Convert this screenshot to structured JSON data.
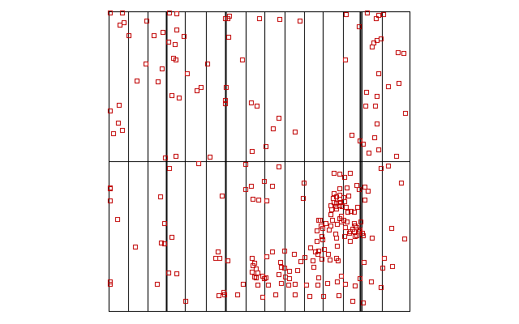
{
  "chart_data": {
    "type": "scatter",
    "title": "",
    "xlabel": "",
    "ylabel": "",
    "xlim": [
      0,
      1
    ],
    "ylim": [
      0,
      1
    ],
    "y_direction": "down",
    "grid": {
      "vertical_dividers": [
        0.065,
        0.129,
        0.191,
        0.254,
        0.323,
        0.388,
        0.453,
        0.517,
        0.582,
        0.647,
        0.711,
        0.776,
        0.84,
        0.906
      ],
      "heavy_dividers": [
        0.191,
        0.388,
        0.832
      ],
      "horizontal_dividers": [
        0.5
      ]
    },
    "marker": {
      "shape": "open-square",
      "color": "#c00000"
    },
    "points": [
      [
        0.003,
        0.003
      ],
      [
        0.045,
        0.004
      ],
      [
        0.2,
        0.004
      ],
      [
        0.225,
        0.008
      ],
      [
        0.385,
        0.022
      ],
      [
        0.049,
        0.037
      ],
      [
        0.125,
        0.03
      ],
      [
        0.4,
        0.016
      ],
      [
        0.395,
        0.022
      ],
      [
        0.498,
        0.022
      ],
      [
        0.567,
        0.025
      ],
      [
        0.632,
        0.03
      ],
      [
        0.787,
        0.009
      ],
      [
        0.856,
        0.005
      ],
      [
        0.893,
        0.013
      ],
      [
        0.909,
        0.009
      ],
      [
        0.886,
        0.023
      ],
      [
        0.83,
        0.05
      ],
      [
        0.035,
        0.045
      ],
      [
        0.067,
        0.08
      ],
      [
        0.148,
        0.08
      ],
      [
        0.178,
        0.069
      ],
      [
        0.225,
        0.06
      ],
      [
        0.198,
        0.102
      ],
      [
        0.218,
        0.11
      ],
      [
        0.248,
        0.083
      ],
      [
        0.396,
        0.085
      ],
      [
        0.902,
        0.09
      ],
      [
        0.889,
        0.095
      ],
      [
        0.879,
        0.105
      ],
      [
        0.871,
        0.117
      ],
      [
        0.213,
        0.155
      ],
      [
        0.222,
        0.16
      ],
      [
        0.121,
        0.175
      ],
      [
        0.327,
        0.175
      ],
      [
        0.176,
        0.191
      ],
      [
        0.26,
        0.205
      ],
      [
        0.441,
        0.16
      ],
      [
        0.784,
        0.16
      ],
      [
        0.893,
        0.205
      ],
      [
        0.959,
        0.135
      ],
      [
        0.978,
        0.138
      ],
      [
        0.092,
        0.23
      ],
      [
        0.162,
        0.232
      ],
      [
        0.304,
        0.253
      ],
      [
        0.388,
        0.252
      ],
      [
        0.208,
        0.278
      ],
      [
        0.291,
        0.264
      ],
      [
        0.387,
        0.295
      ],
      [
        0.473,
        0.304
      ],
      [
        0.925,
        0.25
      ],
      [
        0.889,
        0.281
      ],
      [
        0.853,
        0.268
      ],
      [
        0.962,
        0.238
      ],
      [
        0.033,
        0.311
      ],
      [
        0.232,
        0.288
      ],
      [
        0.386,
        0.307
      ],
      [
        0.49,
        0.315
      ],
      [
        0.564,
        0.355
      ],
      [
        0.852,
        0.315
      ],
      [
        0.883,
        0.314
      ],
      [
        0.982,
        0.337
      ],
      [
        0.003,
        0.33
      ],
      [
        0.03,
        0.37
      ],
      [
        0.045,
        0.394
      ],
      [
        0.015,
        0.405
      ],
      [
        0.545,
        0.39
      ],
      [
        0.617,
        0.4
      ],
      [
        0.888,
        0.373
      ],
      [
        0.804,
        0.41
      ],
      [
        0.88,
        0.42
      ],
      [
        0.832,
        0.43
      ],
      [
        0.895,
        0.46
      ],
      [
        0.954,
        0.48
      ],
      [
        0.862,
        0.47
      ],
      [
        0.844,
        0.44
      ],
      [
        0.519,
        0.45
      ],
      [
        0.475,
        0.465
      ],
      [
        0.335,
        0.484
      ],
      [
        0.222,
        0.48
      ],
      [
        0.298,
        0.505
      ],
      [
        0.188,
        0.486
      ],
      [
        0.2,
        0.522
      ],
      [
        0.454,
        0.509
      ],
      [
        0.563,
        0.515
      ],
      [
        0.903,
        0.521
      ],
      [
        0.927,
        0.513
      ],
      [
        0.764,
        0.54
      ],
      [
        0.746,
        0.538
      ],
      [
        0.8,
        0.537
      ],
      [
        0.782,
        0.55
      ],
      [
        0.003,
        0.585
      ],
      [
        0.002,
        0.588
      ],
      [
        0.515,
        0.565
      ],
      [
        0.473,
        0.581
      ],
      [
        0.452,
        0.591
      ],
      [
        0.542,
        0.582
      ],
      [
        0.646,
        0.57
      ],
      [
        0.79,
        0.585
      ],
      [
        0.821,
        0.578
      ],
      [
        0.829,
        0.592
      ],
      [
        0.849,
        0.583
      ],
      [
        0.97,
        0.571
      ],
      [
        0.001,
        0.63
      ],
      [
        0.172,
        0.615
      ],
      [
        0.374,
        0.613
      ],
      [
        0.477,
        0.625
      ],
      [
        0.495,
        0.627
      ],
      [
        0.522,
        0.63
      ],
      [
        0.644,
        0.62
      ],
      [
        0.747,
        0.604
      ],
      [
        0.764,
        0.59
      ],
      [
        0.764,
        0.636
      ],
      [
        0.766,
        0.611
      ],
      [
        0.795,
        0.612
      ],
      [
        0.779,
        0.618
      ],
      [
        0.773,
        0.649
      ],
      [
        0.859,
        0.597
      ],
      [
        0.849,
        0.627
      ],
      [
        0.755,
        0.615
      ],
      [
        0.766,
        0.625
      ],
      [
        0.754,
        0.638
      ],
      [
        0.745,
        0.634
      ],
      [
        0.751,
        0.648
      ],
      [
        0.738,
        0.66
      ],
      [
        0.734,
        0.675
      ],
      [
        0.765,
        0.646
      ],
      [
        0.781,
        0.632
      ],
      [
        0.744,
        0.621
      ],
      [
        0.755,
        0.657
      ],
      [
        0.736,
        0.645
      ],
      [
        0.785,
        0.652
      ],
      [
        0.791,
        0.666
      ],
      [
        0.803,
        0.665
      ],
      [
        0.812,
        0.666
      ],
      [
        0.823,
        0.652
      ],
      [
        0.769,
        0.68
      ],
      [
        0.766,
        0.69
      ],
      [
        0.771,
        0.7
      ],
      [
        0.779,
        0.695
      ],
      [
        0.735,
        0.712
      ],
      [
        0.704,
        0.712
      ],
      [
        0.7,
        0.694
      ],
      [
        0.719,
        0.704
      ],
      [
        0.741,
        0.694
      ],
      [
        0.788,
        0.7
      ],
      [
        0.784,
        0.718
      ],
      [
        0.812,
        0.706
      ],
      [
        0.817,
        0.714
      ],
      [
        0.836,
        0.699
      ],
      [
        0.814,
        0.732
      ],
      [
        0.832,
        0.727
      ],
      [
        0.821,
        0.745
      ],
      [
        0.843,
        0.744
      ],
      [
        0.841,
        0.738
      ],
      [
        0.799,
        0.764
      ],
      [
        0.797,
        0.736
      ],
      [
        0.815,
        0.749
      ],
      [
        0.754,
        0.753
      ],
      [
        0.708,
        0.76
      ],
      [
        0.705,
        0.748
      ],
      [
        0.027,
        0.691
      ],
      [
        0.184,
        0.706
      ],
      [
        0.695,
        0.695
      ],
      [
        0.756,
        0.707
      ],
      [
        0.69,
        0.728
      ],
      [
        0.708,
        0.722
      ],
      [
        0.729,
        0.726
      ],
      [
        0.75,
        0.739
      ],
      [
        0.78,
        0.747
      ],
      [
        0.8,
        0.731
      ],
      [
        0.808,
        0.724
      ],
      [
        0.821,
        0.717
      ],
      [
        0.828,
        0.733
      ],
      [
        0.936,
        0.72
      ],
      [
        0.981,
        0.755
      ],
      [
        0.174,
        0.769
      ],
      [
        0.207,
        0.752
      ],
      [
        0.69,
        0.764
      ],
      [
        0.758,
        0.781
      ],
      [
        0.715,
        0.79
      ],
      [
        0.694,
        0.797
      ],
      [
        0.691,
        0.807
      ],
      [
        0.726,
        0.808
      ],
      [
        0.754,
        0.822
      ],
      [
        0.871,
        0.754
      ],
      [
        0.087,
        0.782
      ],
      [
        0.185,
        0.773
      ],
      [
        0.361,
        0.798
      ],
      [
        0.366,
        0.821
      ],
      [
        0.522,
        0.815
      ],
      [
        0.543,
        0.8
      ],
      [
        0.581,
        0.797
      ],
      [
        0.614,
        0.808
      ],
      [
        0.649,
        0.818
      ],
      [
        0.635,
        0.831
      ],
      [
        0.668,
        0.787
      ],
      [
        0.684,
        0.798
      ],
      [
        0.678,
        0.85
      ],
      [
        0.705,
        0.823
      ],
      [
        0.733,
        0.826
      ],
      [
        0.76,
        0.829
      ],
      [
        0.846,
        0.834
      ],
      [
        0.913,
        0.822
      ],
      [
        0.354,
        0.82
      ],
      [
        0.394,
        0.83
      ],
      [
        0.474,
        0.82
      ],
      [
        0.483,
        0.836
      ],
      [
        0.478,
        0.846
      ],
      [
        0.487,
        0.855
      ],
      [
        0.475,
        0.866
      ],
      [
        0.482,
        0.883
      ],
      [
        0.488,
        0.886
      ],
      [
        0.493,
        0.869
      ],
      [
        0.509,
        0.879
      ],
      [
        0.516,
        0.887
      ],
      [
        0.521,
        0.886
      ],
      [
        0.568,
        0.833
      ],
      [
        0.571,
        0.851
      ],
      [
        0.581,
        0.852
      ],
      [
        0.597,
        0.863
      ],
      [
        0.626,
        0.86
      ],
      [
        0.675,
        0.83
      ],
      [
        0.197,
        0.868
      ],
      [
        0.224,
        0.871
      ],
      [
        0.562,
        0.876
      ],
      [
        0.584,
        0.883
      ],
      [
        0.598,
        0.888
      ],
      [
        0.695,
        0.885
      ],
      [
        0.769,
        0.88
      ],
      [
        0.831,
        0.889
      ],
      [
        0.907,
        0.853
      ],
      [
        0.94,
        0.848
      ],
      [
        0.0,
        0.9
      ],
      [
        0.003,
        0.906
      ],
      [
        0.16,
        0.908
      ],
      [
        0.445,
        0.908
      ],
      [
        0.494,
        0.91
      ],
      [
        0.527,
        0.911
      ],
      [
        0.572,
        0.905
      ],
      [
        0.596,
        0.91
      ],
      [
        0.618,
        0.908
      ],
      [
        0.655,
        0.91
      ],
      [
        0.692,
        0.91
      ],
      [
        0.725,
        0.904
      ],
      [
        0.758,
        0.9
      ],
      [
        0.784,
        0.906
      ],
      [
        0.817,
        0.912
      ],
      [
        0.869,
        0.9
      ],
      [
        0.903,
        0.918
      ],
      [
        0.38,
        0.934
      ],
      [
        0.382,
        0.942
      ],
      [
        0.425,
        0.943
      ],
      [
        0.51,
        0.95
      ],
      [
        0.552,
        0.942
      ],
      [
        0.616,
        0.942
      ],
      [
        0.665,
        0.948
      ],
      [
        0.711,
        0.948
      ],
      [
        0.762,
        0.946
      ],
      [
        0.808,
        0.964
      ],
      [
        0.844,
        0.969
      ],
      [
        0.254,
        0.964
      ],
      [
        0.364,
        0.946
      ]
    ]
  }
}
